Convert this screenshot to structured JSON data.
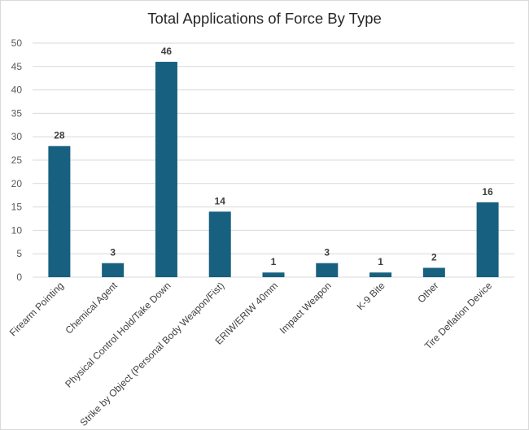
{
  "chart_data": {
    "type": "bar",
    "title": "Total Applications of Force By Type",
    "categories": [
      "Firearm Pointing",
      "Chemical Agent",
      "Physical Control Hold/Take Down",
      "Strike by Object (Personal Body Weapon/Fist)",
      "ERIW/ERIW 40mm",
      "Impact Weapon",
      "K-9 Bite",
      "Other",
      "Tire Deflation Device"
    ],
    "values": [
      28,
      3,
      46,
      14,
      1,
      3,
      1,
      2,
      16
    ],
    "ylim": [
      0,
      50
    ],
    "yticks": [
      0,
      5,
      10,
      15,
      20,
      25,
      30,
      35,
      40,
      45,
      50
    ],
    "grid": true,
    "data_labels": true,
    "bar_color": "#17607f",
    "grid_color": "#d9d9d9"
  }
}
